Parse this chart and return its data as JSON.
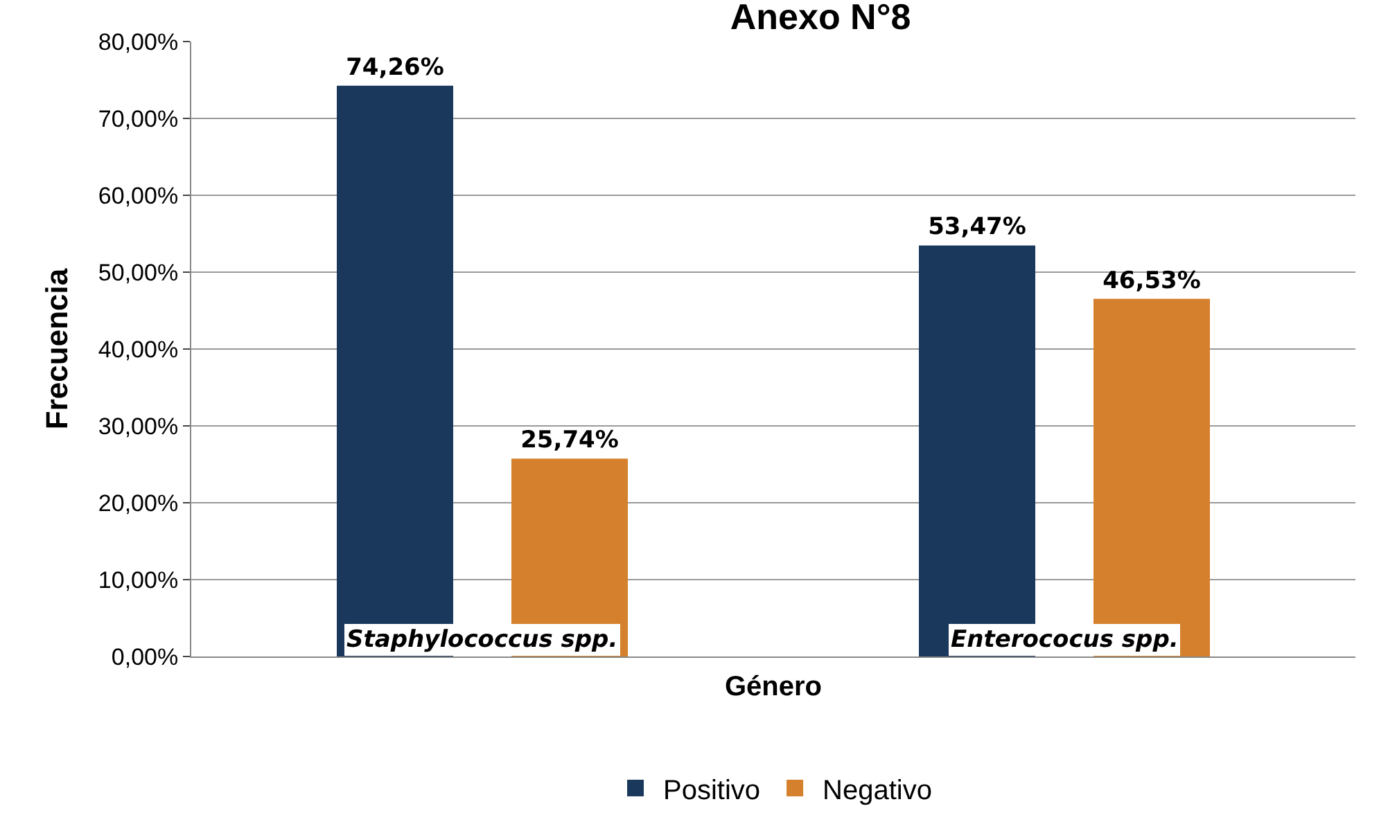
{
  "chart_data": {
    "type": "bar",
    "title": "Anexo N°8",
    "xlabel": "Género",
    "ylabel": "Frecuencia",
    "categories": [
      "Staphylococcus spp.",
      "Enterococus spp."
    ],
    "series": [
      {
        "name": "Positivo",
        "color": "#1a385c",
        "values": [
          74.26,
          53.47
        ]
      },
      {
        "name": "Negativo",
        "color": "#d5802c",
        "values": [
          25.74,
          46.53
        ]
      }
    ],
    "ylim": [
      0,
      80
    ],
    "yticks": [
      {
        "value": 80,
        "label": "80,00%"
      },
      {
        "value": 70,
        "label": "70,00%"
      },
      {
        "value": 60,
        "label": "60,00%"
      },
      {
        "value": 50,
        "label": "50,00%"
      },
      {
        "value": 40,
        "label": "40,00%"
      },
      {
        "value": 30,
        "label": "30,00%"
      },
      {
        "value": 20,
        "label": "20,00%"
      },
      {
        "value": 10,
        "label": "10,00%"
      },
      {
        "value": 0,
        "label": "0,00%"
      }
    ],
    "value_labels": [
      [
        "74,26%",
        "53,47%"
      ],
      [
        "25,74%",
        "46,53%"
      ]
    ],
    "grid": "y",
    "legend": "bottom"
  }
}
